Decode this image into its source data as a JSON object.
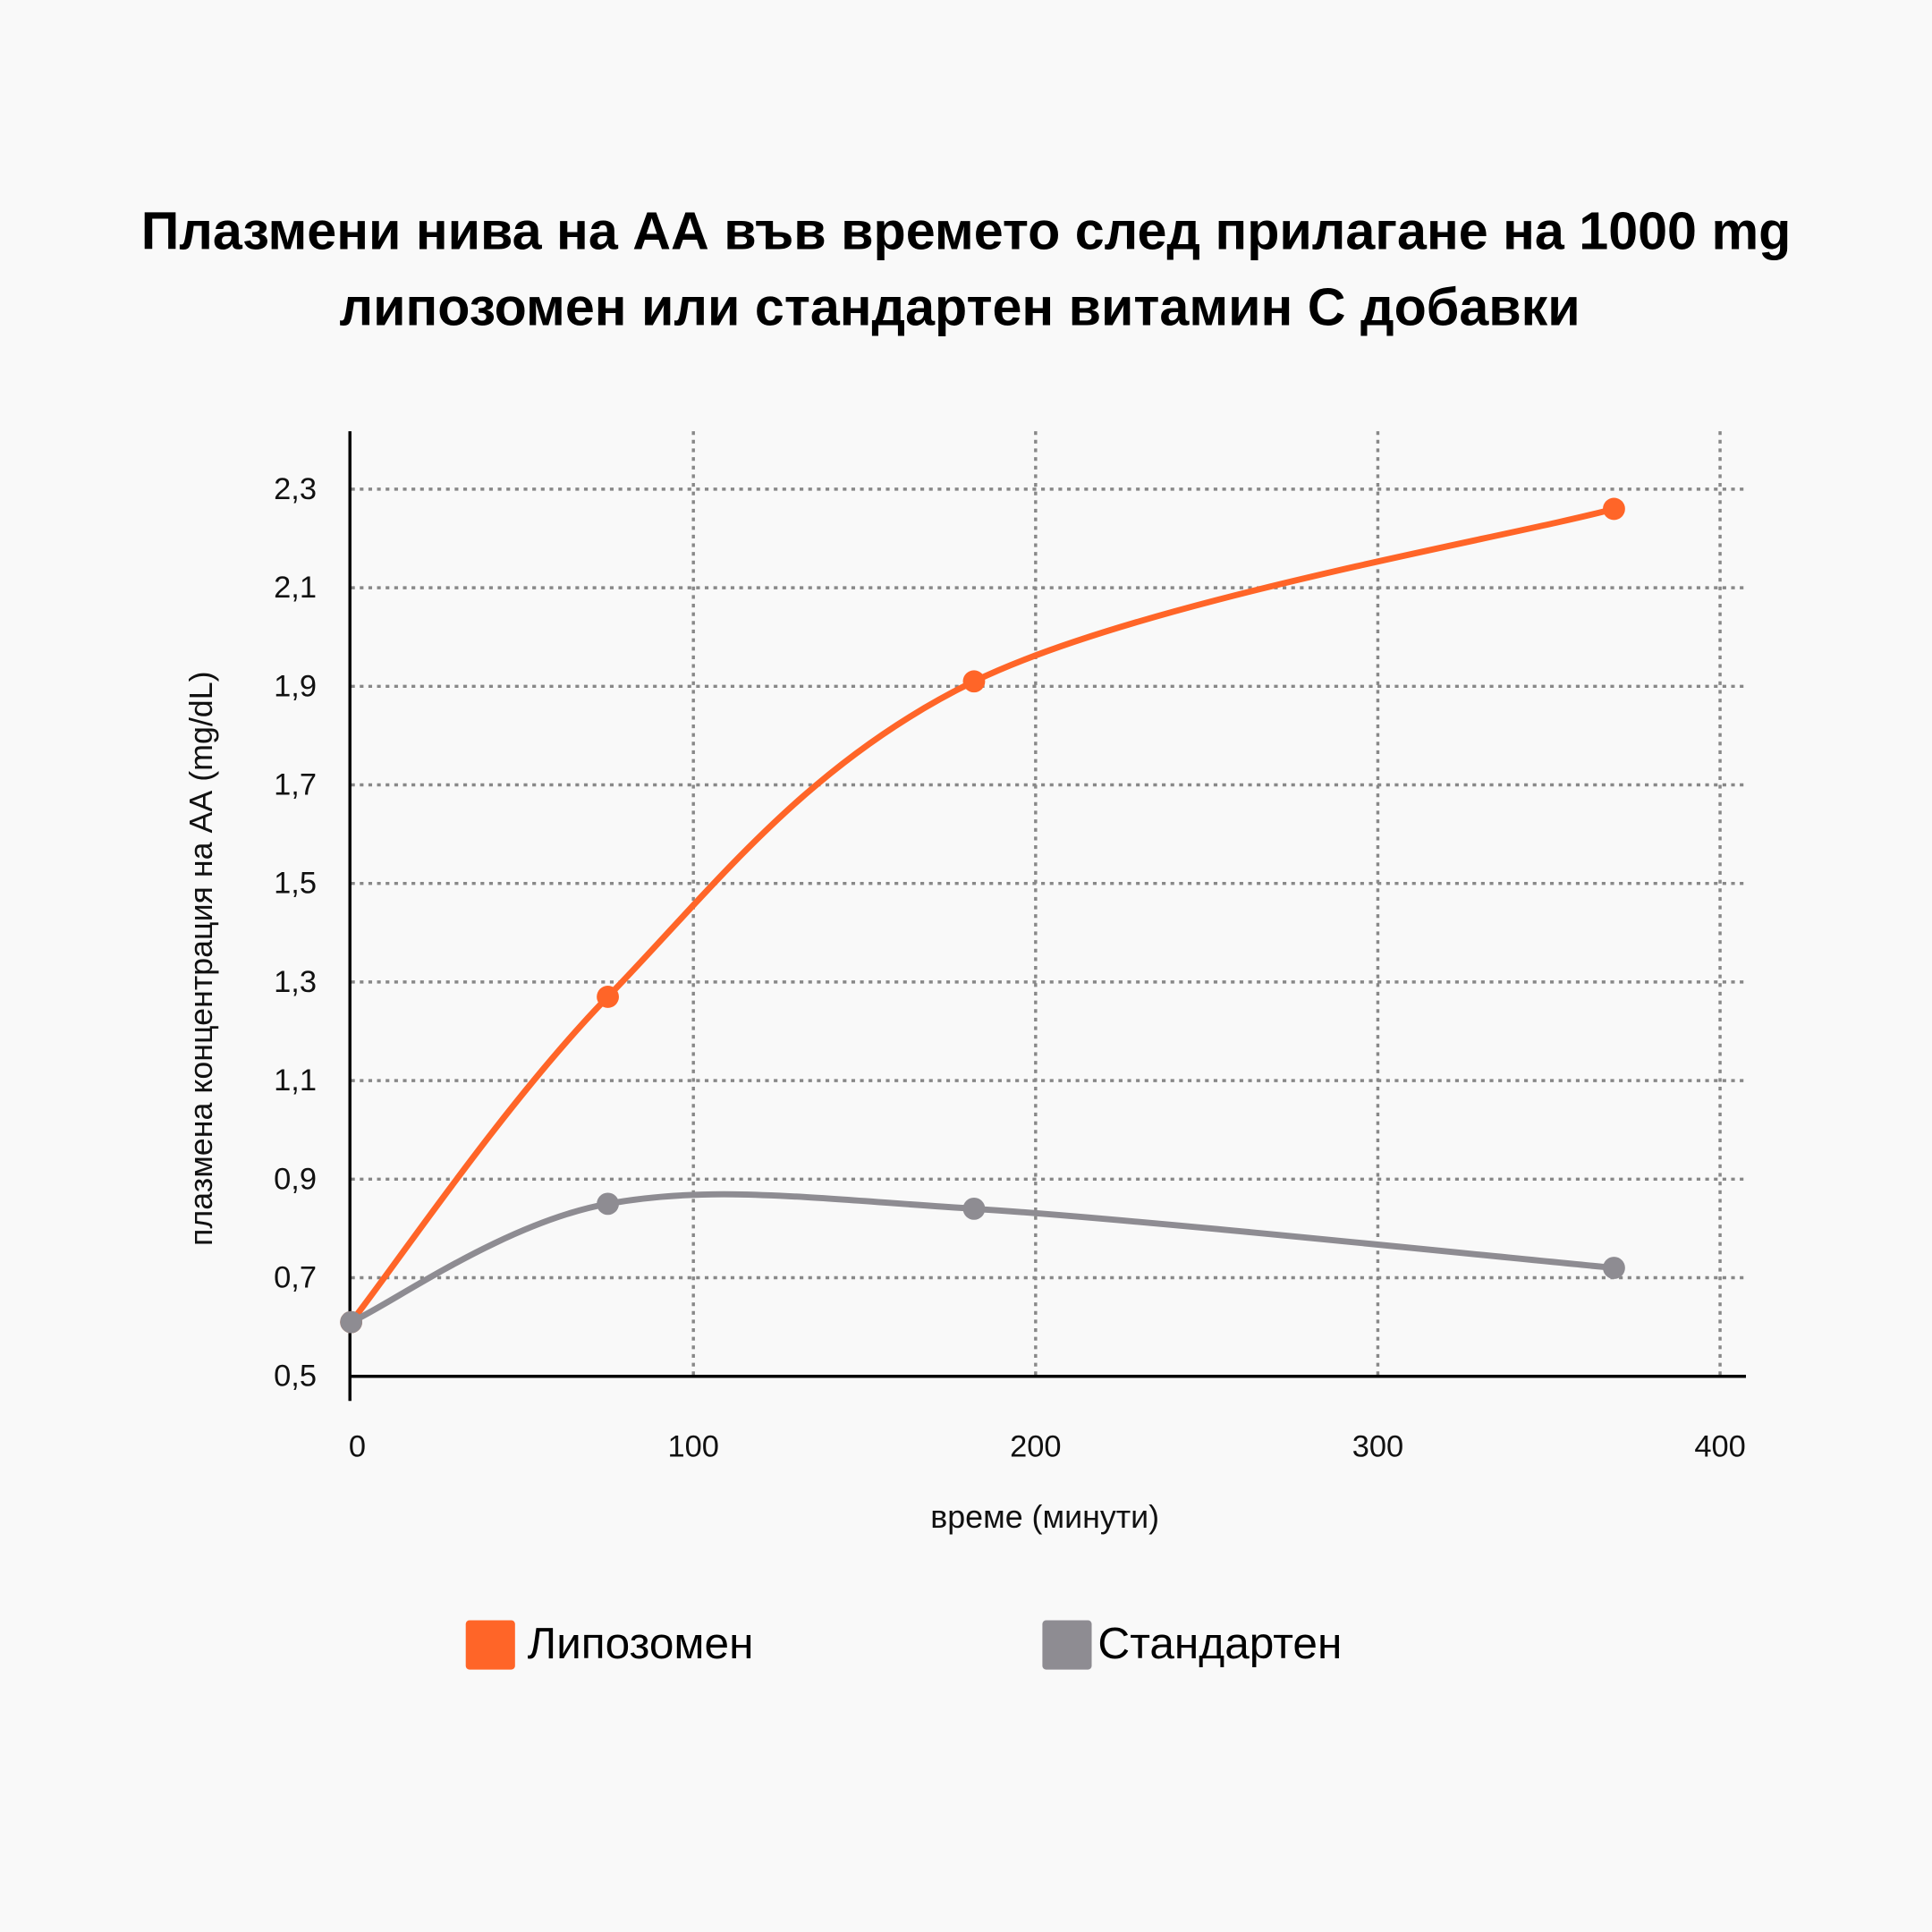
{
  "chart_data": {
    "type": "line",
    "title": [
      "Плазмени нива на АА във времето след прилагане на 1000 mg",
      "липозомен или стандартен витамин С добавки"
    ],
    "xlabel": "време (минути)",
    "ylabel": "плазмена концентрация на АА (mg/dL)",
    "xlim": [
      0,
      400
    ],
    "ylim": [
      0.5,
      2.3
    ],
    "xticks": [
      "0",
      "100",
      "200",
      "300",
      "400"
    ],
    "yticks": [
      "0,5",
      "0,7",
      "0,9",
      "1,1",
      "1,3",
      "1,5",
      "1,7",
      "1,9",
      "2,1",
      "2,3"
    ],
    "grid": true,
    "legend_position": "bottom",
    "series": [
      {
        "name": "Липозомен",
        "color": "#ff6528",
        "x": [
          0,
          75,
          182,
          369
        ],
        "y": [
          0.61,
          1.27,
          1.91,
          2.26
        ]
      },
      {
        "name": "Стандартен",
        "color": "#8e8c92",
        "x": [
          0,
          75,
          182,
          369
        ],
        "y": [
          0.61,
          0.85,
          0.84,
          0.72
        ]
      }
    ]
  }
}
